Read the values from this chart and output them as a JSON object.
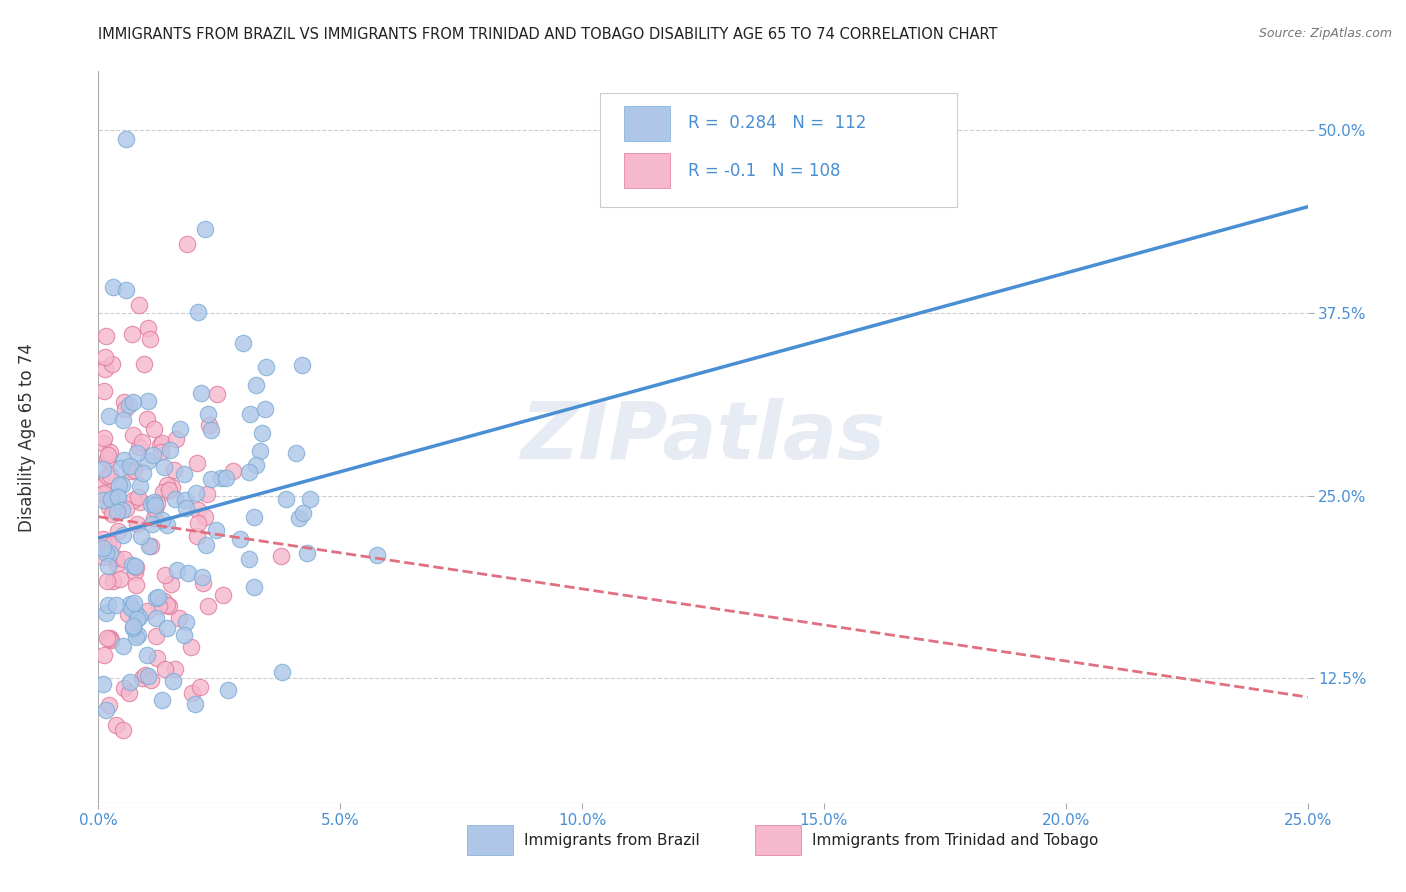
{
  "title": "IMMIGRANTS FROM BRAZIL VS IMMIGRANTS FROM TRINIDAD AND TOBAGO DISABILITY AGE 65 TO 74 CORRELATION CHART",
  "source": "Source: ZipAtlas.com",
  "ylabel": "Disability Age 65 to 74",
  "xlim": [
    0.0,
    0.25
  ],
  "ylim": [
    0.04,
    0.54
  ],
  "xtick_labels": [
    "0.0%",
    "5.0%",
    "10.0%",
    "15.0%",
    "20.0%",
    "25.0%"
  ],
  "xtick_vals": [
    0.0,
    0.05,
    0.1,
    0.15,
    0.2,
    0.25
  ],
  "ytick_labels": [
    "12.5%",
    "25.0%",
    "37.5%",
    "50.0%"
  ],
  "ytick_vals": [
    0.125,
    0.25,
    0.375,
    0.5
  ],
  "brazil_color": "#aec6e8",
  "brazil_edge": "#7aabd4",
  "trinidad_color": "#f5b8cc",
  "trinidad_edge": "#e0789a",
  "brazil_line_color": "#4a8fd4",
  "trinidad_line_color": "#e07080",
  "legend_brazil_label": "Immigrants from Brazil",
  "legend_trinidad_label": "Immigrants from Trinidad and Tobago",
  "R_brazil": 0.284,
  "N_brazil": 112,
  "R_trinidad": -0.1,
  "N_trinidad": 108,
  "watermark": "ZIPatlas",
  "background_color": "#ffffff",
  "grid_color": "#c8c8c8"
}
